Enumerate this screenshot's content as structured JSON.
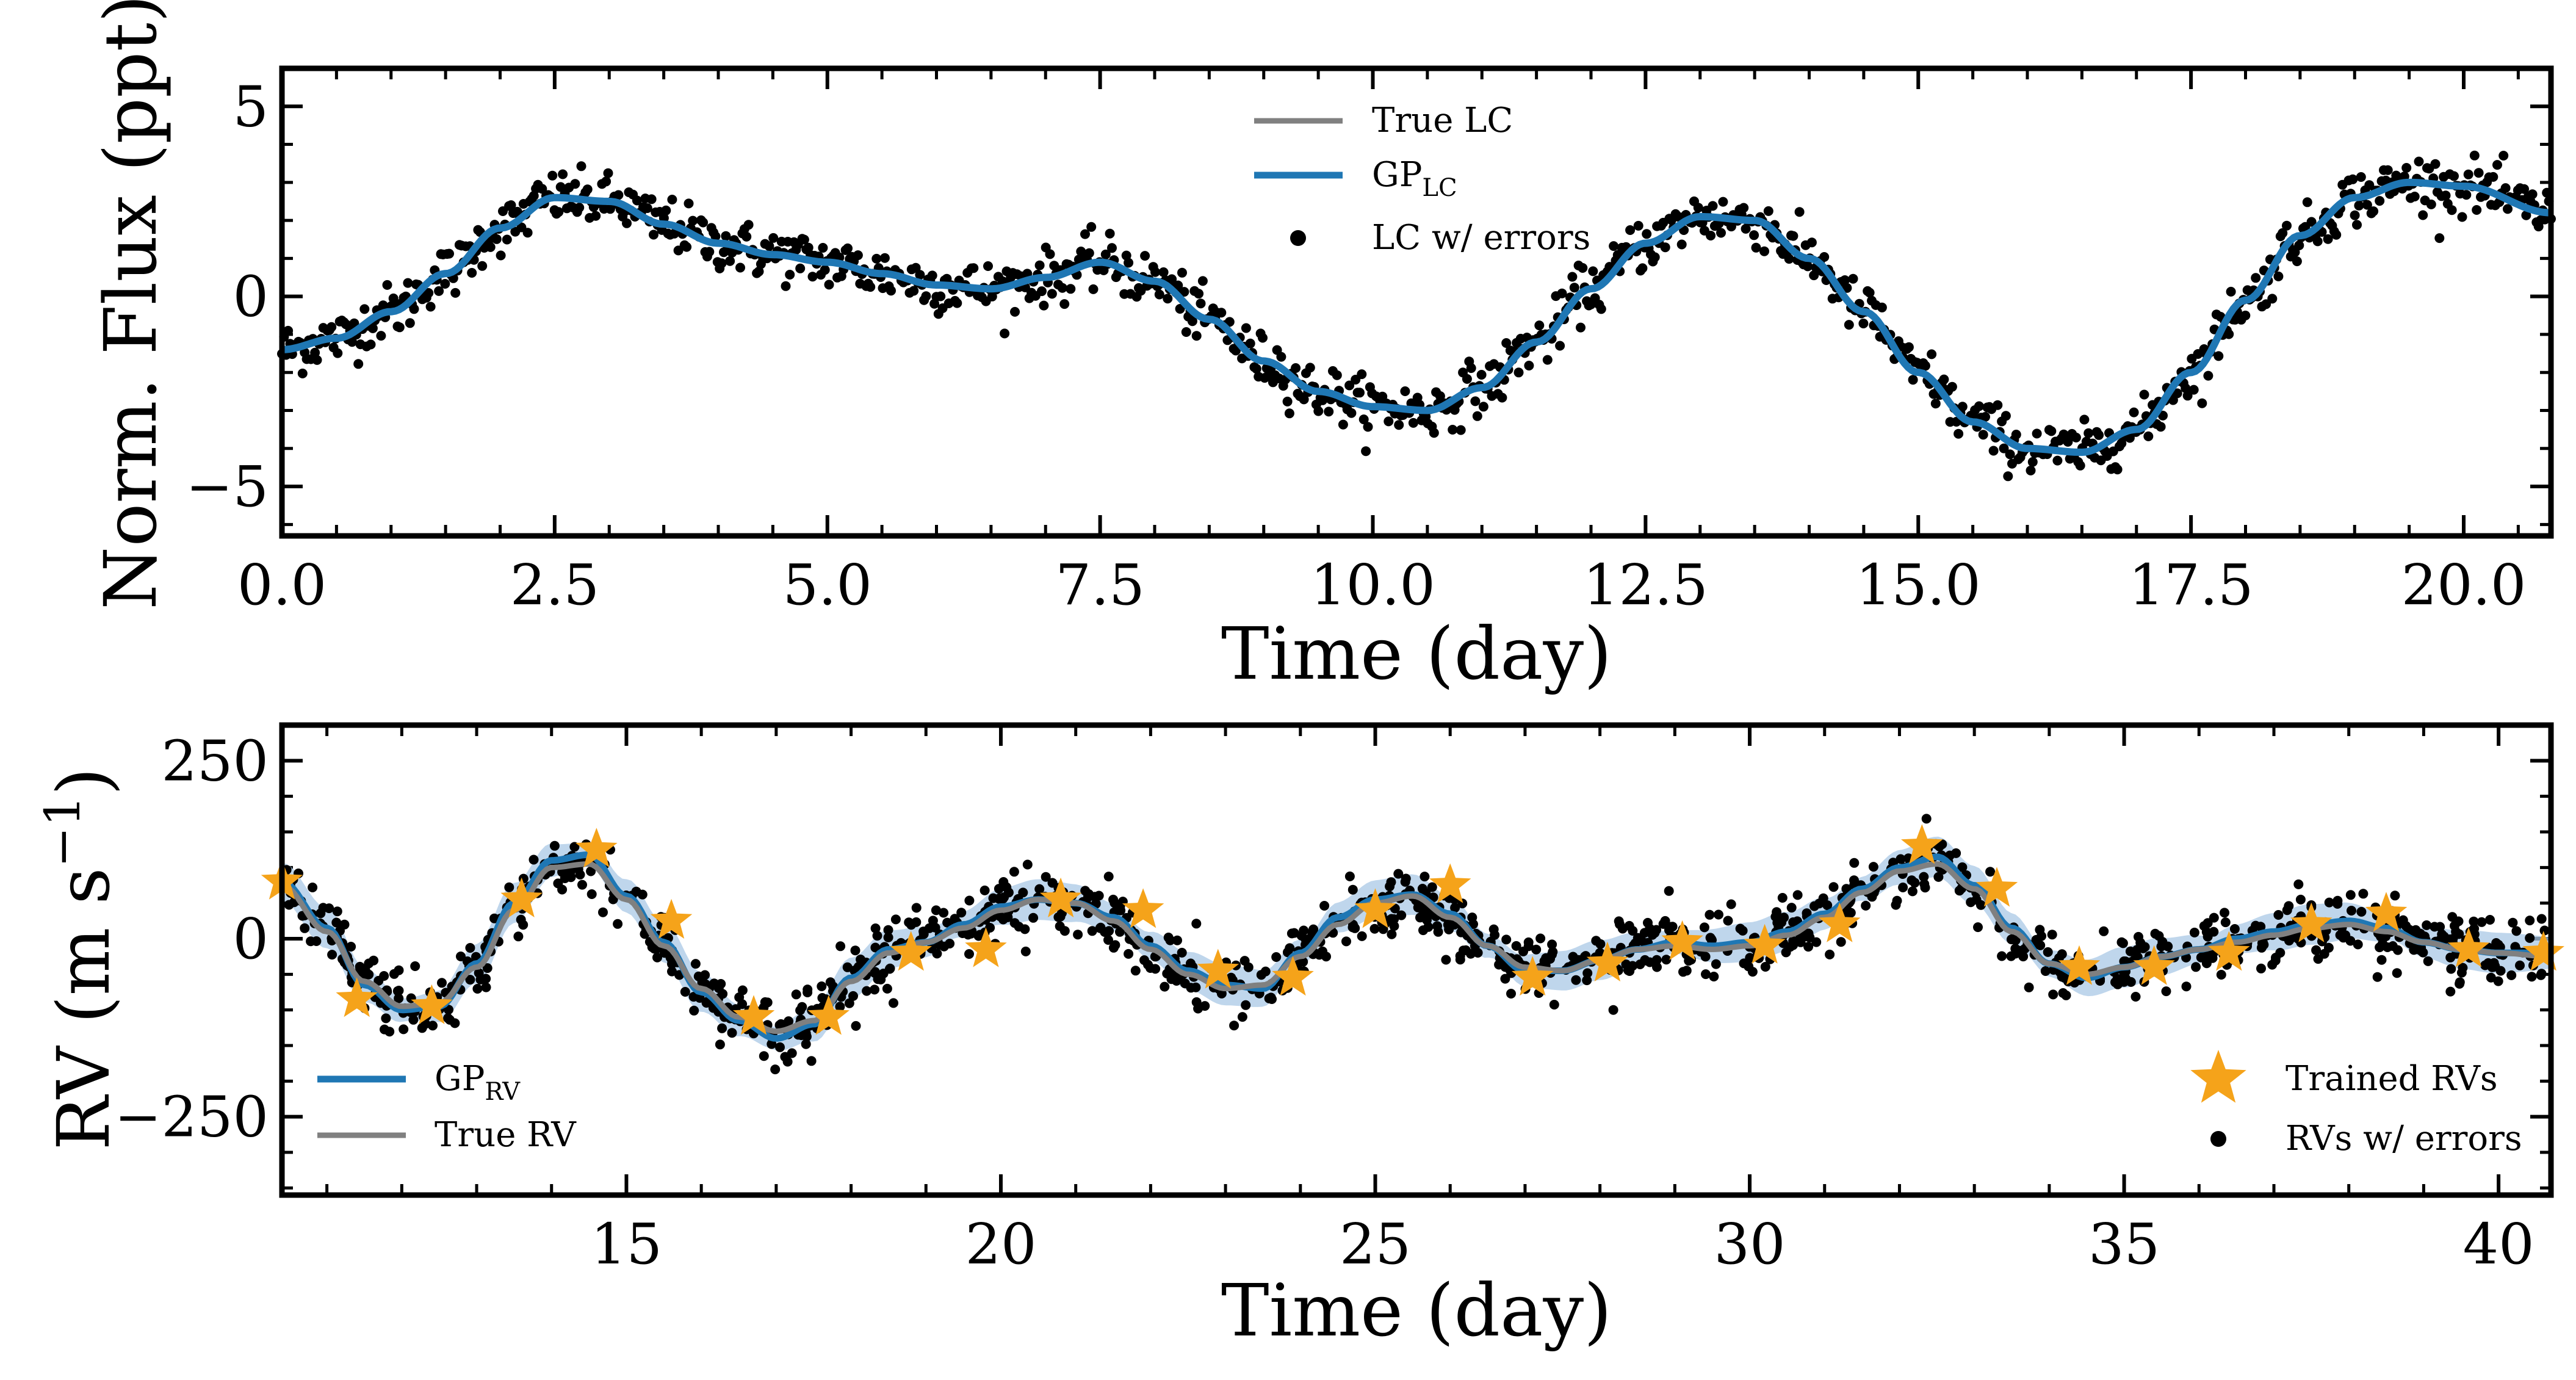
{
  "chart_data": [
    {
      "type": "line",
      "xlabel": "Time (day)",
      "ylabel": "Norm. Flux (ppt)",
      "xlim": [
        0.0,
        20.8
      ],
      "ylim": [
        -6.3,
        6.0
      ],
      "x_ticks": [
        0.0,
        2.5,
        5.0,
        7.5,
        10.0,
        12.5,
        15.0,
        17.5,
        20.0
      ],
      "x_tick_labels": [
        "0.0",
        "2.5",
        "5.0",
        "7.5",
        "10.0",
        "12.5",
        "15.0",
        "17.5",
        "20.0"
      ],
      "y_ticks": [
        -5,
        0,
        5
      ],
      "y_tick_labels": [
        "−5",
        "0",
        "5"
      ],
      "legend_position": "top-center",
      "series": [
        {
          "name": "True LC",
          "kind": "line",
          "color": "#808080",
          "x": [
            0,
            0.5,
            1,
            1.5,
            2,
            2.5,
            3,
            3.5,
            4,
            4.5,
            5,
            5.5,
            6,
            6.5,
            7,
            7.5,
            8,
            8.5,
            9,
            9.5,
            10,
            10.5,
            11,
            11.5,
            12,
            12.5,
            13,
            13.5,
            14,
            14.5,
            15,
            15.5,
            16,
            16.5,
            17,
            17.5,
            18,
            18.5,
            19,
            19.5,
            20,
            20.8
          ],
          "y": [
            -1.4,
            -1.1,
            -0.4,
            0.6,
            1.8,
            2.6,
            2.5,
            1.9,
            1.4,
            1.1,
            0.9,
            0.6,
            0.3,
            0.2,
            0.5,
            0.9,
            0.4,
            -0.6,
            -1.7,
            -2.5,
            -2.9,
            -3.0,
            -2.4,
            -1.2,
            0.2,
            1.4,
            2.1,
            2.0,
            1.0,
            -0.4,
            -2.0,
            -3.3,
            -4.0,
            -4.1,
            -3.5,
            -2.0,
            -0.1,
            1.6,
            2.6,
            3.0,
            2.9,
            2.2
          ]
        },
        {
          "name": "GP_LC",
          "kind": "line",
          "color": "#1f77b4",
          "x": [
            0,
            0.5,
            1,
            1.5,
            2,
            2.5,
            3,
            3.5,
            4,
            4.5,
            5,
            5.5,
            6,
            6.5,
            7,
            7.5,
            8,
            8.5,
            9,
            9.5,
            10,
            10.5,
            11,
            11.5,
            12,
            12.5,
            13,
            13.5,
            14,
            14.5,
            15,
            15.5,
            16,
            16.5,
            17,
            17.5,
            18,
            18.5,
            19,
            19.5,
            20,
            20.8
          ],
          "y": [
            -1.4,
            -1.1,
            -0.4,
            0.6,
            1.8,
            2.6,
            2.5,
            1.9,
            1.4,
            1.1,
            0.9,
            0.6,
            0.3,
            0.2,
            0.5,
            0.9,
            0.4,
            -0.6,
            -1.7,
            -2.5,
            -2.9,
            -3.0,
            -2.4,
            -1.2,
            0.2,
            1.4,
            2.1,
            2.0,
            1.0,
            -0.4,
            -2.0,
            -3.3,
            -4.0,
            -4.1,
            -3.5,
            -2.0,
            -0.1,
            1.6,
            2.6,
            3.0,
            2.9,
            2.2
          ]
        },
        {
          "name": "LC w/ errors",
          "kind": "scatter",
          "color": "#000000",
          "noise_ppt": 0.35,
          "n_points": 1100
        }
      ],
      "legend_entries": [
        {
          "label": "True LC",
          "sub": ""
        },
        {
          "label": "GP",
          "sub": "LC"
        },
        {
          "label": "LC w/ errors",
          "sub": ""
        }
      ]
    },
    {
      "type": "line",
      "xlabel": "Time (day)",
      "ylabel": "RV (m s",
      "ylabel_sup": "−1",
      "ylabel_close": ")",
      "xlim": [
        10.4,
        40.7
      ],
      "ylim": [
        -360,
        300
      ],
      "x_ticks": [
        15,
        20,
        25,
        30,
        35,
        40
      ],
      "x_tick_labels": [
        "15",
        "20",
        "25",
        "30",
        "35",
        "40"
      ],
      "y_ticks": [
        -250,
        0,
        250
      ],
      "y_tick_labels": [
        "−250",
        "0",
        "250"
      ],
      "series": [
        {
          "name": "True RV",
          "kind": "line",
          "color": "#808080",
          "x": [
            10.4,
            11,
            11.5,
            12,
            12.5,
            13,
            13.5,
            14,
            14.5,
            15,
            15.5,
            16,
            16.5,
            17,
            17.5,
            18,
            18.5,
            19,
            19.5,
            20,
            20.5,
            21,
            21.5,
            22,
            22.5,
            23,
            23.5,
            24,
            24.5,
            25,
            25.5,
            26,
            26.5,
            27,
            27.5,
            28,
            28.5,
            29,
            29.5,
            30,
            30.5,
            31,
            31.5,
            32,
            32.5,
            33,
            33.5,
            34,
            34.5,
            35,
            35.5,
            36,
            36.5,
            37,
            37.5,
            38,
            38.5,
            39,
            39.5,
            40,
            40.7
          ],
          "y": [
            75,
            10,
            -60,
            -95,
            -90,
            -40,
            40,
            100,
            105,
            55,
            -10,
            -70,
            -110,
            -130,
            -115,
            -60,
            -20,
            -5,
            15,
            40,
            55,
            50,
            25,
            -15,
            -50,
            -70,
            -65,
            -25,
            20,
            50,
            60,
            30,
            -10,
            -40,
            -45,
            -30,
            -15,
            -10,
            -15,
            -10,
            5,
            30,
            65,
            95,
            105,
            70,
            10,
            -35,
            -50,
            -40,
            -25,
            -15,
            -5,
            5,
            15,
            20,
            10,
            -5,
            -15,
            -20,
            -25
          ]
        },
        {
          "name": "GP_RV",
          "kind": "line",
          "color": "#1f77b4",
          "band_color": "#a9c8e5",
          "band_half_width": 22,
          "x": [
            10.4,
            11,
            11.5,
            12,
            12.5,
            13,
            13.5,
            14,
            14.5,
            15,
            15.5,
            16,
            16.5,
            17,
            17.5,
            18,
            18.5,
            19,
            19.5,
            20,
            20.5,
            21,
            21.5,
            22,
            22.5,
            23,
            23.5,
            24,
            24.5,
            25,
            25.5,
            26,
            26.5,
            27,
            27.5,
            28,
            28.5,
            29,
            29.5,
            30,
            30.5,
            31,
            31.5,
            32,
            32.5,
            33,
            33.5,
            34,
            34.5,
            35,
            35.5,
            36,
            36.5,
            37,
            37.5,
            38,
            38.5,
            39,
            39.5,
            40,
            40.7
          ],
          "y": [
            80,
            15,
            -65,
            -100,
            -95,
            -35,
            50,
            110,
            118,
            60,
            -5,
            -75,
            -115,
            -140,
            -120,
            -55,
            -15,
            -5,
            20,
            45,
            55,
            50,
            30,
            -10,
            -45,
            -65,
            -70,
            -20,
            30,
            55,
            62,
            35,
            -10,
            -45,
            -45,
            -30,
            -15,
            -5,
            -10,
            -5,
            10,
            35,
            70,
            100,
            115,
            75,
            15,
            -35,
            -55,
            -40,
            -25,
            -15,
            0,
            10,
            20,
            25,
            15,
            -5,
            -15,
            -20,
            -20
          ]
        },
        {
          "name": "Trained RVs",
          "kind": "scatter",
          "marker": "star",
          "color": "#f5a31a",
          "x": [
            10.4,
            11.4,
            12.4,
            13.6,
            14.6,
            15.6,
            16.7,
            17.7,
            18.8,
            19.8,
            20.8,
            21.9,
            22.9,
            23.9,
            25.0,
            26.0,
            27.1,
            28.1,
            29.1,
            30.2,
            31.2,
            32.3,
            33.3,
            34.4,
            35.4,
            36.4,
            37.5,
            38.5,
            39.6,
            40.6
          ],
          "y": [
            80,
            -85,
            -95,
            55,
            125,
            25,
            -110,
            -110,
            -20,
            -15,
            55,
            40,
            -45,
            -55,
            40,
            75,
            -55,
            -35,
            -5,
            -10,
            20,
            130,
            70,
            -40,
            -40,
            -20,
            20,
            35,
            -15,
            -20
          ]
        },
        {
          "name": "RVs w/ errors",
          "kind": "scatter",
          "color": "#000000",
          "noise_ms": 22,
          "n_points": 1350
        }
      ],
      "legend_left": [
        {
          "label": "GP",
          "sub": "RV"
        },
        {
          "label": "True RV",
          "sub": ""
        }
      ],
      "legend_right": [
        {
          "label": "Trained RVs",
          "sub": ""
        },
        {
          "label": "RVs w/ errors",
          "sub": ""
        }
      ]
    }
  ]
}
